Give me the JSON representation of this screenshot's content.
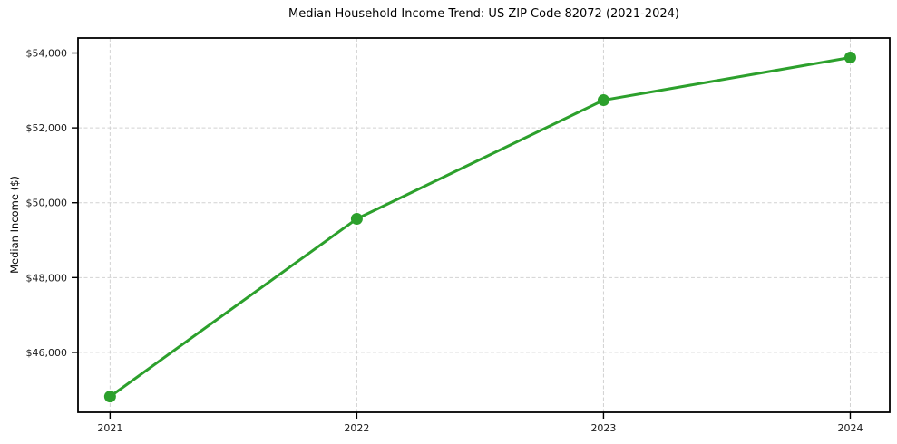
{
  "chart_data": {
    "type": "line",
    "title": "Median Household Income Trend: US ZIP Code 82072 (2021-2024)",
    "xlabel": "",
    "ylabel": "Median Income ($)",
    "x": [
      2021,
      2022,
      2023,
      2024
    ],
    "series": [
      {
        "name": "Median Household Income",
        "values": [
          44820,
          49570,
          52740,
          53880
        ]
      }
    ],
    "xlim": [
      2020.87,
      2024.16
    ],
    "ylim": [
      44400,
      54400
    ],
    "xticks": [
      2021,
      2022,
      2023,
      2024
    ],
    "xtick_labels": [
      "2021",
      "2022",
      "2023",
      "2024"
    ],
    "yticks": [
      46000,
      48000,
      50000,
      52000,
      54000
    ],
    "ytick_labels": [
      "$46,000",
      "$48,000",
      "$50,000",
      "$52,000",
      "$54,000"
    ],
    "grid": true,
    "grid_style": "dashed",
    "legend": "none",
    "colors": {
      "line": "#2ca02c",
      "marker": "#2ca02c",
      "grid": "#d2d2d2",
      "spine": "#000000",
      "tick_label": "#1a1a1a",
      "background": "#ffffff"
    }
  }
}
